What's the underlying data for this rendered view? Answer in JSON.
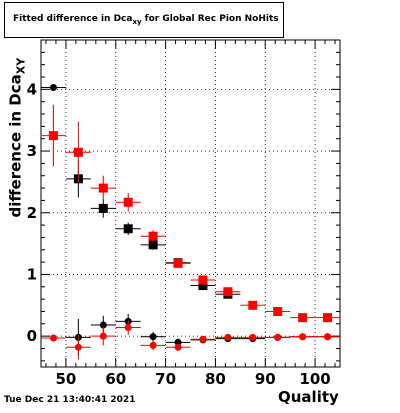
{
  "chart_data": {
    "type": "scatter",
    "title_main": "Fitted difference in Dca",
    "title_sub": "xy",
    "title_rest": " for Global Rec Pion NoHits",
    "ylabel_main": "difference in Dca",
    "ylabel_sub": "XY",
    "xlabel": "Quality",
    "timestamp": "Tue Dec 21 13:40:41 2021",
    "xlim": [
      45,
      105
    ],
    "ylim": [
      -0.5,
      4.8
    ],
    "xticks": [
      50,
      60,
      70,
      80,
      90,
      100
    ],
    "yticks": [
      0,
      1,
      2,
      3,
      4
    ],
    "grid": true,
    "series": [
      {
        "color": "#000000",
        "marker": "square",
        "points": [
          {
            "x": 52.5,
            "y": 2.55,
            "xerr": 2.5,
            "yerr": 0.3
          },
          {
            "x": 57.5,
            "y": 2.07,
            "xerr": 2.5,
            "yerr": 0.15
          },
          {
            "x": 62.5,
            "y": 1.74,
            "xerr": 2.5,
            "yerr": 0.1
          },
          {
            "x": 67.5,
            "y": 1.48,
            "xerr": 2.5,
            "yerr": 0.08
          },
          {
            "x": 72.5,
            "y": 1.19,
            "xerr": 2.5,
            "yerr": 0.06
          },
          {
            "x": 77.5,
            "y": 0.82,
            "xerr": 2.5,
            "yerr": 0.05
          },
          {
            "x": 82.5,
            "y": 0.68,
            "xerr": 2.5,
            "yerr": 0.05
          }
        ]
      },
      {
        "color": "#ff0000",
        "marker": "square",
        "points": [
          {
            "x": 47.5,
            "y": 3.25,
            "xerr": 2.5,
            "yerr": 0.5
          },
          {
            "x": 52.5,
            "y": 2.98,
            "xerr": 2.5,
            "yerr": 0.5
          },
          {
            "x": 57.5,
            "y": 2.4,
            "xerr": 2.5,
            "yerr": 0.2
          },
          {
            "x": 62.5,
            "y": 2.17,
            "xerr": 2.5,
            "yerr": 0.15
          },
          {
            "x": 67.5,
            "y": 1.62,
            "xerr": 2.5,
            "yerr": 0.1
          },
          {
            "x": 72.5,
            "y": 1.18,
            "xerr": 2.5,
            "yerr": 0.06
          },
          {
            "x": 77.5,
            "y": 0.91,
            "xerr": 2.5,
            "yerr": 0.05
          },
          {
            "x": 82.5,
            "y": 0.72,
            "xerr": 2.5,
            "yerr": 0.05
          },
          {
            "x": 87.5,
            "y": 0.5,
            "xerr": 2.5,
            "yerr": 0.04
          },
          {
            "x": 92.5,
            "y": 0.4,
            "xerr": 2.5,
            "yerr": 0.04
          },
          {
            "x": 97.5,
            "y": 0.3,
            "xerr": 2.5,
            "yerr": 0.03
          },
          {
            "x": 102.5,
            "y": 0.3,
            "xerr": 2.5,
            "yerr": 0.03
          }
        ]
      },
      {
        "color": "#000000",
        "marker": "circle",
        "points": [
          {
            "x": 47.5,
            "y": 4.03,
            "xerr": 2.5,
            "yerr": 0.05
          },
          {
            "x": 52.5,
            "y": -0.02,
            "xerr": 2.5,
            "yerr": 0.3
          },
          {
            "x": 57.5,
            "y": 0.18,
            "xerr": 2.5,
            "yerr": 0.15
          },
          {
            "x": 62.5,
            "y": 0.24,
            "xerr": 2.5,
            "yerr": 0.12
          },
          {
            "x": 67.5,
            "y": -0.01,
            "xerr": 2.5,
            "yerr": 0.08
          },
          {
            "x": 72.5,
            "y": -0.1,
            "xerr": 2.5,
            "yerr": 0.06
          },
          {
            "x": 77.5,
            "y": -0.06,
            "xerr": 2.5,
            "yerr": 0.05
          },
          {
            "x": 82.5,
            "y": -0.04,
            "xerr": 2.5,
            "yerr": 0.05
          },
          {
            "x": 87.5,
            "y": -0.04,
            "xerr": 2.5,
            "yerr": 0.04
          },
          {
            "x": 92.5,
            "y": -0.02,
            "xerr": 2.5,
            "yerr": 0.04
          },
          {
            "x": 97.5,
            "y": -0.01,
            "xerr": 2.5,
            "yerr": 0.03
          },
          {
            "x": 102.5,
            "y": -0.01,
            "xerr": 2.5,
            "yerr": 0.03
          }
        ]
      },
      {
        "color": "#ff0000",
        "marker": "circle",
        "points": [
          {
            "x": 47.5,
            "y": -0.03,
            "xerr": 2.5,
            "yerr": 0.05
          },
          {
            "x": 52.5,
            "y": -0.18,
            "xerr": 2.5,
            "yerr": 0.2
          },
          {
            "x": 57.5,
            "y": 0.0,
            "xerr": 2.5,
            "yerr": 0.15
          },
          {
            "x": 62.5,
            "y": 0.14,
            "xerr": 2.5,
            "yerr": 0.12
          },
          {
            "x": 67.5,
            "y": -0.15,
            "xerr": 2.5,
            "yerr": 0.08
          },
          {
            "x": 72.5,
            "y": -0.18,
            "xerr": 2.5,
            "yerr": 0.06
          },
          {
            "x": 77.5,
            "y": -0.05,
            "xerr": 2.5,
            "yerr": 0.05
          },
          {
            "x": 82.5,
            "y": -0.02,
            "xerr": 2.5,
            "yerr": 0.05
          },
          {
            "x": 87.5,
            "y": -0.02,
            "xerr": 2.5,
            "yerr": 0.04
          },
          {
            "x": 92.5,
            "y": -0.02,
            "xerr": 2.5,
            "yerr": 0.04
          },
          {
            "x": 97.5,
            "y": -0.01,
            "xerr": 2.5,
            "yerr": 0.03
          },
          {
            "x": 102.5,
            "y": -0.01,
            "xerr": 2.5,
            "yerr": 0.03
          }
        ]
      }
    ]
  }
}
